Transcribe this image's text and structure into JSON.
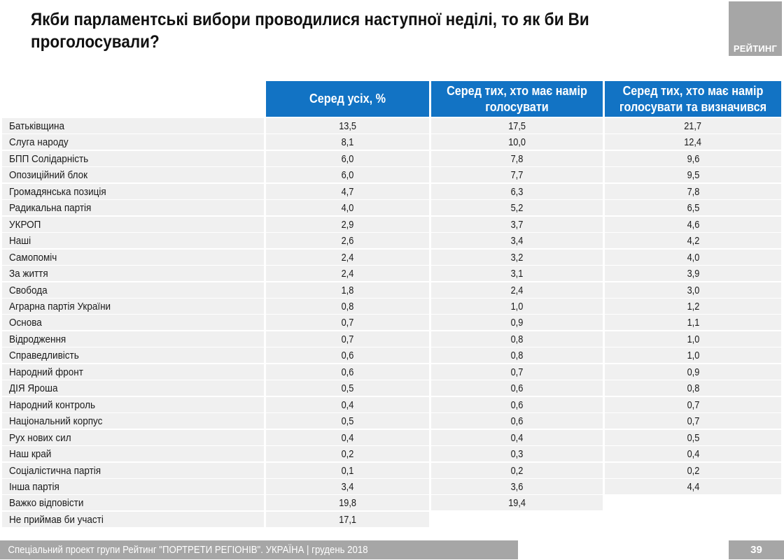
{
  "title": "Якби парламентські вибори проводилися наступної неділі, то як би Ви проголосували?",
  "logo": {
    "text": "РЕЙТИНГ"
  },
  "table": {
    "columns": [
      "Серед усіх, %",
      "Серед тих, хто має намір голосувати",
      "Серед тих, хто має намір голосувати та визначився"
    ],
    "rows": [
      {
        "label": "Батьківщина",
        "all": "13,5",
        "intend": "17,5",
        "decided": "21,7"
      },
      {
        "label": "Слуга народу",
        "all": "8,1",
        "intend": "10,0",
        "decided": "12,4"
      },
      {
        "label": "БПП Солідарність",
        "all": "6,0",
        "intend": "7,8",
        "decided": "9,6"
      },
      {
        "label": "Опозиційний блок",
        "all": "6,0",
        "intend": "7,7",
        "decided": "9,5"
      },
      {
        "label": "Громадянська позиція",
        "all": "4,7",
        "intend": "6,3",
        "decided": "7,8"
      },
      {
        "label": "Радикальна партія",
        "all": "4,0",
        "intend": "5,2",
        "decided": "6,5"
      },
      {
        "label": "УКРОП",
        "all": "2,9",
        "intend": "3,7",
        "decided": "4,6"
      },
      {
        "label": "Наші",
        "all": "2,6",
        "intend": "3,4",
        "decided": "4,2"
      },
      {
        "label": "Самопоміч",
        "all": "2,4",
        "intend": "3,2",
        "decided": "4,0"
      },
      {
        "label": "За життя",
        "all": "2,4",
        "intend": "3,1",
        "decided": "3,9"
      },
      {
        "label": "Свобода",
        "all": "1,8",
        "intend": "2,4",
        "decided": "3,0"
      },
      {
        "label": "Аграрна партія України",
        "all": "0,8",
        "intend": "1,0",
        "decided": "1,2"
      },
      {
        "label": "Основа",
        "all": "0,7",
        "intend": "0,9",
        "decided": "1,1"
      },
      {
        "label": "Відродження",
        "all": "0,7",
        "intend": "0,8",
        "decided": "1,0"
      },
      {
        "label": "Справедливість",
        "all": "0,6",
        "intend": "0,8",
        "decided": "1,0"
      },
      {
        "label": "Народний фронт",
        "all": "0,6",
        "intend": "0,7",
        "decided": "0,9"
      },
      {
        "label": "ДІЯ Яроша",
        "all": "0,5",
        "intend": "0,6",
        "decided": "0,8"
      },
      {
        "label": "Народний контроль",
        "all": "0,4",
        "intend": "0,6",
        "decided": "0,7"
      },
      {
        "label": "Національний корпус",
        "all": "0,5",
        "intend": "0,6",
        "decided": "0,7"
      },
      {
        "label": "Рух нових сил",
        "all": "0,4",
        "intend": "0,4",
        "decided": "0,5"
      },
      {
        "label": "Наш край",
        "all": "0,2",
        "intend": "0,3",
        "decided": "0,4"
      },
      {
        "label": "Соціалістична партія",
        "all": "0,1",
        "intend": "0,2",
        "decided": "0,2"
      },
      {
        "label": "Інша партія",
        "all": "3,4",
        "intend": "3,6",
        "decided": "4,4"
      },
      {
        "label": "Важко відповісти",
        "all": "19,8",
        "intend": "19,4",
        "decided": null
      },
      {
        "label": "Не приймав би участі",
        "all": "17,1",
        "intend": null,
        "decided": null
      }
    ]
  },
  "footer": {
    "text": "Спеціальний проект групи Рейтинг \"ПОРТРЕТИ РЕГІОНІВ\". УКРАЇНА | грудень 2018",
    "page_number": "39"
  },
  "colors": {
    "header_blue": "#1273c4",
    "row_gray": "#f0f0f0",
    "footer_gray": "#a6a6a6"
  }
}
